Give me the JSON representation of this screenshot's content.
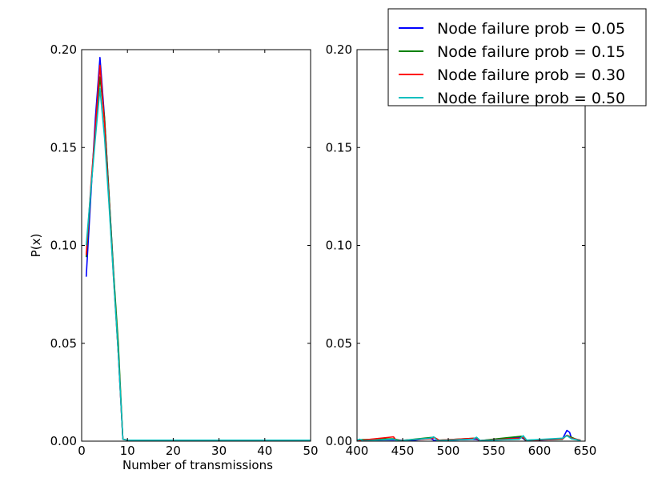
{
  "chart_data": [
    {
      "type": "line",
      "title": "",
      "xlabel": "Number of transmissions",
      "ylabel": "P(x)",
      "xlim": [
        0,
        50
      ],
      "ylim": [
        0,
        0.2
      ],
      "xticks": [
        0,
        10,
        20,
        30,
        40,
        50
      ],
      "xtick_labels": [
        "0",
        "10",
        "20",
        "30",
        "40",
        "50"
      ],
      "yticks": [
        0,
        0.05,
        0.1,
        0.15,
        0.2
      ],
      "ytick_labels": [
        "0.00",
        "0.05",
        "0.10",
        "0.15",
        "0.20"
      ],
      "grid": false,
      "series": [
        {
          "name": "Node failure prob = 0.05",
          "color": "#0000ff",
          "points": [
            [
              1,
              0.084
            ],
            [
              2,
              0.125
            ],
            [
              3,
              0.165
            ],
            [
              4,
              0.196
            ],
            [
              5,
              0.165
            ],
            [
              6,
              0.125
            ],
            [
              7,
              0.085
            ],
            [
              8,
              0.045
            ],
            [
              9,
              0.001
            ],
            [
              10,
              0.0005
            ],
            [
              50,
              0.0005
            ]
          ]
        },
        {
          "name": "Node failure prob = 0.15",
          "color": "#008000",
          "points": [
            [
              1,
              0.094
            ],
            [
              2,
              0.128
            ],
            [
              3,
              0.158
            ],
            [
              4,
              0.186
            ],
            [
              5,
              0.165
            ],
            [
              6,
              0.125
            ],
            [
              7,
              0.085
            ],
            [
              8,
              0.05
            ],
            [
              9,
              0.001
            ],
            [
              10,
              0.0005
            ],
            [
              50,
              0.0005
            ]
          ]
        },
        {
          "name": "Node failure prob = 0.30",
          "color": "#ff0000",
          "points": [
            [
              1,
              0.095
            ],
            [
              2,
              0.13
            ],
            [
              3,
              0.16
            ],
            [
              4,
              0.192
            ],
            [
              5,
              0.162
            ],
            [
              6,
              0.122
            ],
            [
              7,
              0.082
            ],
            [
              8,
              0.045
            ],
            [
              9,
              0.001
            ],
            [
              10,
              0.0005
            ],
            [
              50,
              0.0005
            ]
          ]
        },
        {
          "name": "Node failure prob = 0.50",
          "color": "#00bfbf",
          "points": [
            [
              1,
              0.1
            ],
            [
              2,
              0.128
            ],
            [
              3,
              0.155
            ],
            [
              4,
              0.18
            ],
            [
              5,
              0.155
            ],
            [
              6,
              0.12
            ],
            [
              7,
              0.082
            ],
            [
              8,
              0.045
            ],
            [
              9,
              0.001
            ],
            [
              10,
              0.0005
            ],
            [
              50,
              0.0005
            ]
          ]
        }
      ]
    },
    {
      "type": "line",
      "title": "",
      "xlabel": "",
      "ylabel": "",
      "xlim": [
        400,
        650
      ],
      "ylim": [
        0,
        0.2
      ],
      "xticks": [
        400,
        450,
        500,
        550,
        600,
        650
      ],
      "xtick_labels": [
        "400",
        "450",
        "500",
        "550",
        "600",
        "650"
      ],
      "yticks": [
        0,
        0.05,
        0.1,
        0.15,
        0.2
      ],
      "ytick_labels": [
        "0.00",
        "0.05",
        "0.10",
        "0.15",
        "0.20"
      ],
      "grid": false,
      "legend": {
        "placement": "top-right"
      },
      "series": [
        {
          "name": "Node failure prob = 0.05",
          "color": "#0000ff",
          "points": [
            [
              400,
              0.0005
            ],
            [
              440,
              0.0007
            ],
            [
              460,
              0.0003
            ],
            [
              480,
              0.0015
            ],
            [
              485,
              0.0003
            ],
            [
              530,
              0.001
            ],
            [
              535,
              0.0003
            ],
            [
              580,
              0.002
            ],
            [
              585,
              0.0003
            ],
            [
              625,
              0.001
            ],
            [
              630,
              0.0055
            ],
            [
              633,
              0.0045
            ],
            [
              635,
              0.0015
            ],
            [
              640,
              0.001
            ],
            [
              645,
              0.0003
            ]
          ]
        },
        {
          "name": "Node failure prob = 0.15",
          "color": "#008000",
          "points": [
            [
              400,
              0.0003
            ],
            [
              405,
              0.0008
            ],
            [
              440,
              0.0012
            ],
            [
              448,
              0.0003
            ],
            [
              480,
              0.0018
            ],
            [
              484,
              0.002
            ],
            [
              490,
              0.0005
            ],
            [
              530,
              0.0015
            ],
            [
              535,
              0.0003
            ],
            [
              580,
              0.0025
            ],
            [
              585,
              0.0005
            ],
            [
              625,
              0.001
            ],
            [
              630,
              0.003
            ],
            [
              635,
              0.002
            ],
            [
              640,
              0.001
            ],
            [
              645,
              0.0005
            ]
          ]
        },
        {
          "name": "Node failure prob = 0.30",
          "color": "#ff0000",
          "points": [
            [
              400,
              0.0003
            ],
            [
              405,
              0.0005
            ],
            [
              440,
              0.0022
            ],
            [
              443,
              0.0003
            ],
            [
              480,
              0.0012
            ],
            [
              485,
              0.0018
            ],
            [
              490,
              0.0005
            ],
            [
              530,
              0.0015
            ],
            [
              535,
              0.0003
            ],
            [
              578,
              0.0015
            ],
            [
              582,
              0.002
            ],
            [
              586,
              0.0003
            ],
            [
              625,
              0.0012
            ],
            [
              630,
              0.003
            ],
            [
              635,
              0.0015
            ],
            [
              640,
              0.001
            ],
            [
              645,
              0.0005
            ]
          ]
        },
        {
          "name": "Node failure prob = 0.50",
          "color": "#00bfbf",
          "points": [
            [
              400,
              0.0005
            ],
            [
              403,
              0.001
            ],
            [
              407,
              0.0002
            ],
            [
              440,
              0.001
            ],
            [
              445,
              0.0002
            ],
            [
              480,
              0.0015
            ],
            [
              484,
              0.0022
            ],
            [
              488,
              0.0003
            ],
            [
              527,
              0.001
            ],
            [
              531,
              0.002
            ],
            [
              535,
              0.0003
            ],
            [
              578,
              0.001
            ],
            [
              582,
              0.0028
            ],
            [
              586,
              0.0005
            ],
            [
              625,
              0.0015
            ],
            [
              630,
              0.0028
            ],
            [
              635,
              0.0012
            ],
            [
              640,
              0.0008
            ],
            [
              645,
              0.0003
            ]
          ]
        }
      ]
    }
  ]
}
